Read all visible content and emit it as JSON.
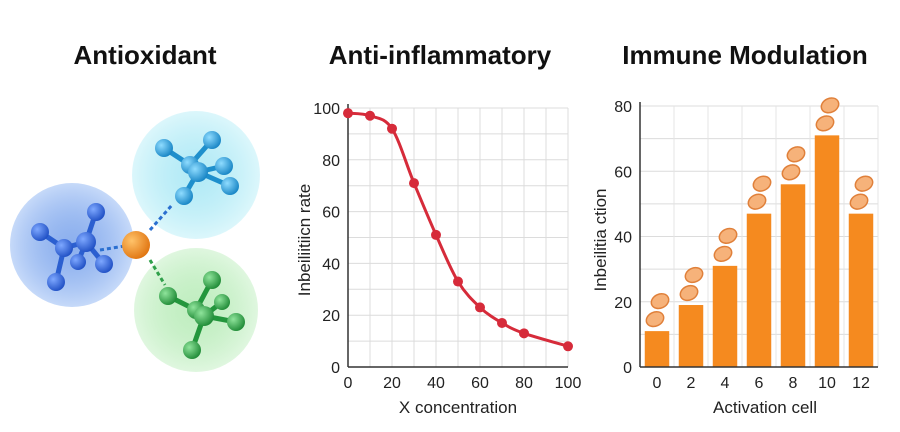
{
  "panels": {
    "antioxidant": {
      "title": "Antioxidant"
    },
    "anti_inflammatory": {
      "title": "Anti-inflammatory"
    },
    "immune": {
      "title": "Immune Modulation"
    }
  },
  "molecule": {
    "colors": {
      "blue_sphere": "#9fc1f4",
      "cyan_sphere": "#9ee8f4",
      "green_sphere": "#a8e8a8",
      "blue_atom": "#2b63d8",
      "cyan_atom": "#2aa6e0",
      "green_atom": "#2fb04a",
      "center_atom": "#f08a1c"
    }
  },
  "chart_data": [
    {
      "type": "line",
      "title": "Anti-inflammatory",
      "xlabel": "X concentration",
      "ylabel": "Inbeiliitiicn rate",
      "x": [
        0,
        10,
        20,
        30,
        40,
        50,
        60,
        70,
        80,
        100
      ],
      "y": [
        98,
        97,
        92,
        71,
        51,
        33,
        23,
        17,
        13,
        8
      ],
      "xlim": [
        0,
        100
      ],
      "ylim": [
        0,
        100
      ],
      "xticks": [
        "0",
        "20",
        "40",
        "60",
        "80",
        "100"
      ],
      "yticks": [
        "0",
        "20",
        "40",
        "60",
        "80",
        "100"
      ],
      "grid": true,
      "color": "#d62b3a"
    },
    {
      "type": "bar",
      "title": "Immune Modulation",
      "xlabel": "Activation cell",
      "ylabel": "Inbeilitia ction",
      "categories": [
        "0",
        "2",
        "4",
        "6",
        "8",
        "10",
        "12"
      ],
      "values": [
        11,
        19,
        31,
        47,
        56,
        71,
        47
      ],
      "ylim": [
        0,
        80
      ],
      "yticks": [
        "0",
        "20",
        "40",
        "60",
        "80"
      ],
      "grid": true,
      "color": "#f58a1f"
    }
  ]
}
